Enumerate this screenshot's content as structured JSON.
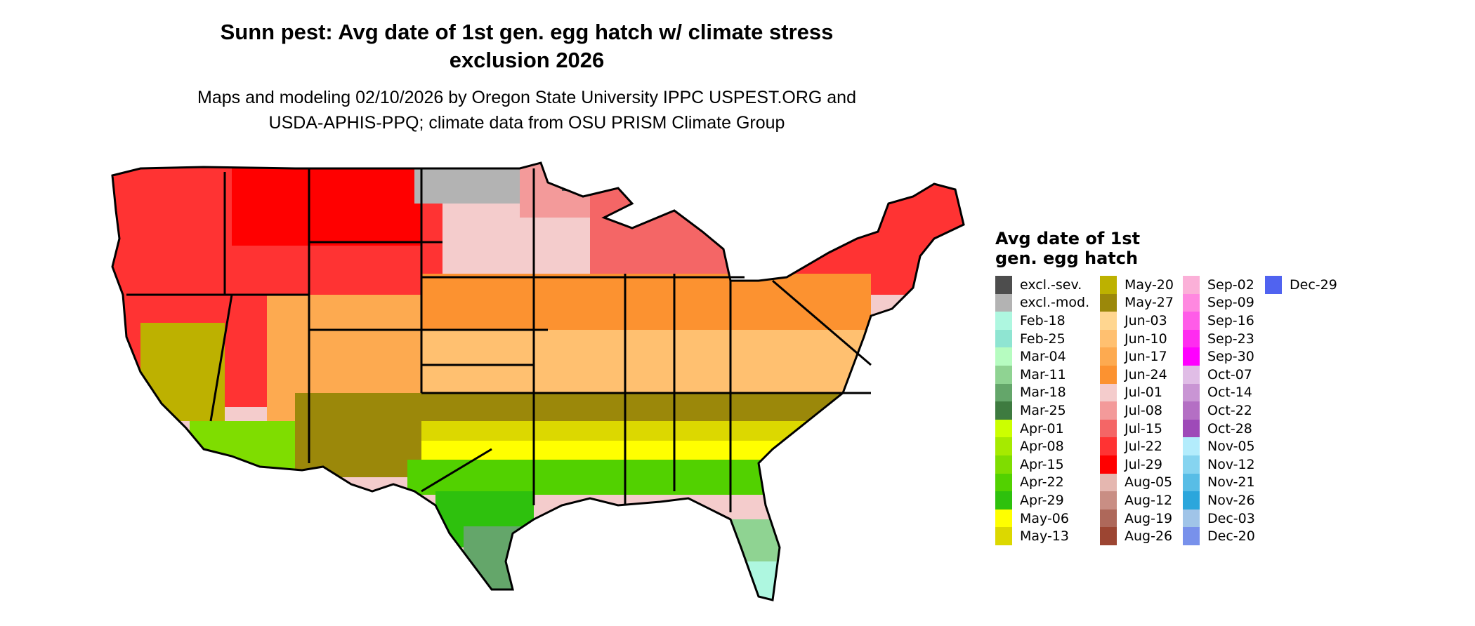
{
  "title_line1": "Sunn pest: Avg date of 1st gen. egg hatch w/ climate stress",
  "title_line2": "exclusion 2026",
  "subtitle_line1": "Maps and modeling 02/10/2026 by Oregon State University IPPC USPEST.ORG and",
  "subtitle_line2": "USDA-APHIS-PPQ; climate data from OSU PRISM Climate Group",
  "legend": {
    "title_line1": "Avg date of 1st",
    "title_line2": "gen. egg hatch",
    "items": [
      {
        "label": "excl.-sev.",
        "color": "#4d4d4d"
      },
      {
        "label": "excl.-mod.",
        "color": "#b3b3b3"
      },
      {
        "label": "Feb-18",
        "color": "#aef7e0"
      },
      {
        "label": "Feb-25",
        "color": "#8fe5d2"
      },
      {
        "label": "Mar-04",
        "color": "#b6fcc0"
      },
      {
        "label": "Mar-11",
        "color": "#8fd392"
      },
      {
        "label": "Mar-18",
        "color": "#64a66a"
      },
      {
        "label": "Mar-25",
        "color": "#3e7b40"
      },
      {
        "label": "Apr-01",
        "color": "#ccff00"
      },
      {
        "label": "Apr-08",
        "color": "#a6ea00"
      },
      {
        "label": "Apr-15",
        "color": "#7fdd00"
      },
      {
        "label": "Apr-22",
        "color": "#52d100"
      },
      {
        "label": "Apr-29",
        "color": "#2ec10d"
      },
      {
        "label": "May-06",
        "color": "#ffff00"
      },
      {
        "label": "May-13",
        "color": "#dcd800"
      },
      {
        "label": "May-20",
        "color": "#bdb100"
      },
      {
        "label": "May-27",
        "color": "#9b880a"
      },
      {
        "label": "Jun-03",
        "color": "#ffd690"
      },
      {
        "label": "Jun-10",
        "color": "#ffc070"
      },
      {
        "label": "Jun-17",
        "color": "#fdaa50"
      },
      {
        "label": "Jun-24",
        "color": "#fc9230"
      },
      {
        "label": "Jul-01",
        "color": "#f4cccc"
      },
      {
        "label": "Jul-08",
        "color": "#f39a9a"
      },
      {
        "label": "Jul-15",
        "color": "#f46666"
      },
      {
        "label": "Jul-22",
        "color": "#ff3333"
      },
      {
        "label": "Jul-29",
        "color": "#ff0000"
      },
      {
        "label": "Aug-05",
        "color": "#e5b7b0"
      },
      {
        "label": "Aug-12",
        "color": "#c98e84"
      },
      {
        "label": "Aug-19",
        "color": "#ae685a"
      },
      {
        "label": "Aug-26",
        "color": "#9c4532"
      },
      {
        "label": "Sep-02",
        "color": "#fbb0d8"
      },
      {
        "label": "Sep-09",
        "color": "#ff88e0"
      },
      {
        "label": "Sep-16",
        "color": "#ff5ce8"
      },
      {
        "label": "Sep-23",
        "color": "#ff2cf0"
      },
      {
        "label": "Sep-30",
        "color": "#ff00ff"
      },
      {
        "label": "Oct-07",
        "color": "#e0bde6"
      },
      {
        "label": "Oct-14",
        "color": "#c995d4"
      },
      {
        "label": "Oct-22",
        "color": "#b46fc4"
      },
      {
        "label": "Oct-28",
        "color": "#9e4ab8"
      },
      {
        "label": "Nov-05",
        "color": "#b3ecfc"
      },
      {
        "label": "Nov-12",
        "color": "#86d4f0"
      },
      {
        "label": "Nov-21",
        "color": "#58bde6"
      },
      {
        "label": "Nov-26",
        "color": "#2ba6dc"
      },
      {
        "label": "Dec-03",
        "color": "#a0c4e8"
      },
      {
        "label": "Dec-20",
        "color": "#7891eb"
      },
      {
        "label": "Dec-29",
        "color": "#5063f0"
      }
    ]
  }
}
